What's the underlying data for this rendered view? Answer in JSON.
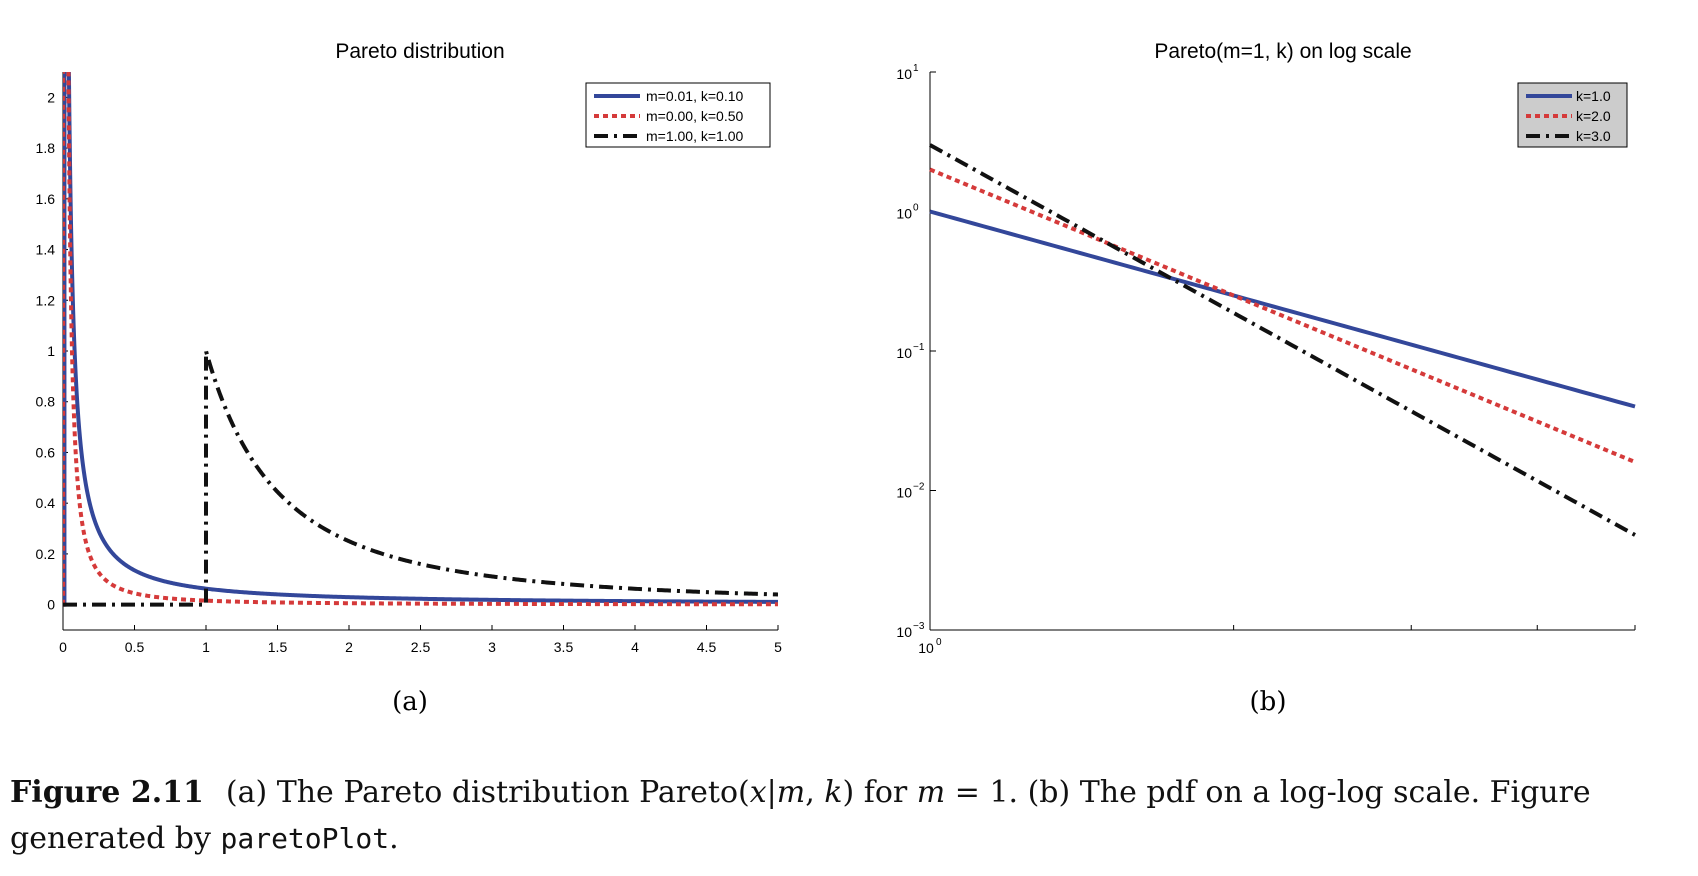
{
  "colors": {
    "blue": "#33479a",
    "red": "#d53a3a",
    "black": "#111111",
    "legend_b_bg": "#cccccc"
  },
  "chart_data": [
    {
      "type": "line",
      "title": "Pareto distribution",
      "xlim": [
        0,
        5
      ],
      "ylim": [
        -0.1,
        2.1
      ],
      "x_ticks": [
        "0",
        "0.5",
        "1",
        "1.5",
        "2",
        "2.5",
        "3",
        "3.5",
        "4",
        "4.5",
        "5"
      ],
      "y_ticks": [
        "0",
        "0.2",
        "0.4",
        "0.6",
        "0.8",
        "1",
        "1.2",
        "1.4",
        "1.6",
        "1.8",
        "2"
      ],
      "legend_position": "top-right",
      "series": [
        {
          "name": "m=0.01, k=0.10",
          "m": 0.01,
          "k": 0.1,
          "style": "solid",
          "color": "blue"
        },
        {
          "name": "m=0.00, k=0.50",
          "m": 0.001,
          "k": 0.5,
          "style": "dotted",
          "color": "red"
        },
        {
          "name": "m=1.00, k=1.00",
          "m": 1.0,
          "k": 1.0,
          "style": "dashdot",
          "color": "black"
        }
      ],
      "sublabel": "(a)"
    },
    {
      "type": "line",
      "title": "Pareto(m=1, k) on log scale",
      "scale": "log-log",
      "xlim": [
        1,
        5
      ],
      "ylim": [
        0.001,
        10
      ],
      "y_ticks": [
        {
          "base": "10",
          "exp": "1"
        },
        {
          "base": "10",
          "exp": "0"
        },
        {
          "base": "10",
          "exp": "−1"
        },
        {
          "base": "10",
          "exp": "−2"
        },
        {
          "base": "10",
          "exp": "−3"
        }
      ],
      "x_ticks": [
        {
          "base": "10",
          "exp": "0"
        }
      ],
      "legend_position": "top-right",
      "series": [
        {
          "name": "k=1.0",
          "k": 1.0,
          "style": "solid",
          "color": "blue"
        },
        {
          "name": "k=2.0",
          "k": 2.0,
          "style": "dotted",
          "color": "red"
        },
        {
          "name": "k=3.0",
          "k": 3.0,
          "style": "dashdot",
          "color": "black"
        }
      ],
      "sublabel": "(b)"
    }
  ],
  "caption": {
    "label": "Figure 2.11",
    "part1": "(a) The Pareto distribution Pareto(",
    "var_x": "x",
    "bar": "|",
    "var_m": "m",
    "comma": ", ",
    "var_k": "k",
    "part2": ") for ",
    "var_m2": "m",
    "part3": " = 1. (b) The pdf on a log-log scale. Figure generated by ",
    "code": "paretoPlot",
    "part4": "."
  }
}
